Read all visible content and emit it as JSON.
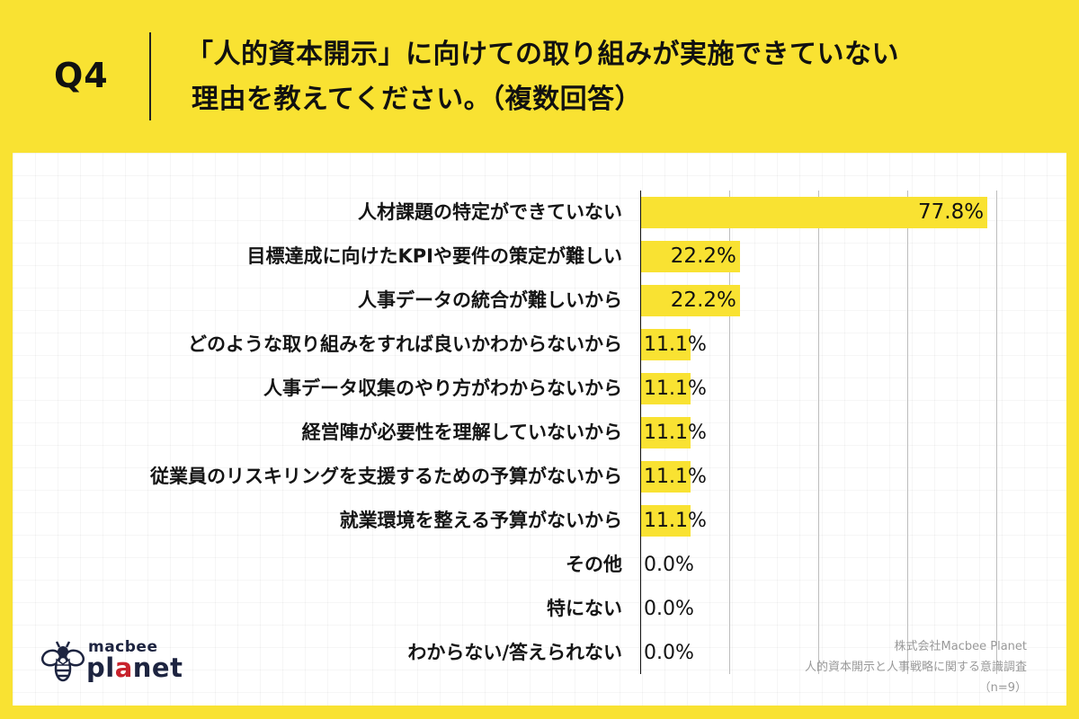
{
  "header": {
    "question_number": "Q4",
    "title_line1": "「人的資本開示」に向けての取り組みが実施できていない",
    "title_line2": "理由を教えてください。（複数回答）"
  },
  "colors": {
    "background": "#f9e232",
    "bar": "#f9e232",
    "panel": "#ffffff",
    "gridline": "#bdbdbd",
    "logo_text": "#1d2440",
    "logo_accent": "#c8222c"
  },
  "chart_data": {
    "type": "bar",
    "orientation": "horizontal",
    "title": "「人的資本開示」に向けての取り組みが実施できていない理由を教えてください。（複数回答）",
    "xlabel": "",
    "ylabel": "",
    "xlim": [
      0,
      100
    ],
    "grid": true,
    "gridline_ticks": [
      0,
      20,
      40,
      60,
      80
    ],
    "legend": null,
    "unit": "%",
    "categories": [
      "人材課題の特定ができていない",
      "目標達成に向けたKPIや要件の策定が難しい",
      "人事データの統合が難しいから",
      "どのような取り組みをすれば良いかわからないから",
      "人事データ収集のやり方がわからないから",
      "経営陣が必要性を理解していないから",
      "従業員のリスキリングを支援するための予算がないから",
      "就業環境を整える予算がないから",
      "その他",
      "特にない",
      "わからない/答えられない"
    ],
    "values": [
      77.8,
      22.2,
      22.2,
      11.1,
      11.1,
      11.1,
      11.1,
      11.1,
      0.0,
      0.0,
      0.0
    ],
    "value_labels": [
      "77.8%",
      "22.2%",
      "22.2%",
      "11.1%",
      "11.1%",
      "11.1%",
      "11.1%",
      "11.1%",
      "0.0%",
      "0.0%",
      "0.0%"
    ]
  },
  "logo": {
    "line1": "macbee",
    "line2_pre": "pl",
    "line2_accent": "a",
    "line2_post": "net"
  },
  "source": {
    "company": "株式会社Macbee Planet",
    "survey": "人的資本開示と人事戦略に関する意識調査",
    "sample": "（n=9）"
  }
}
